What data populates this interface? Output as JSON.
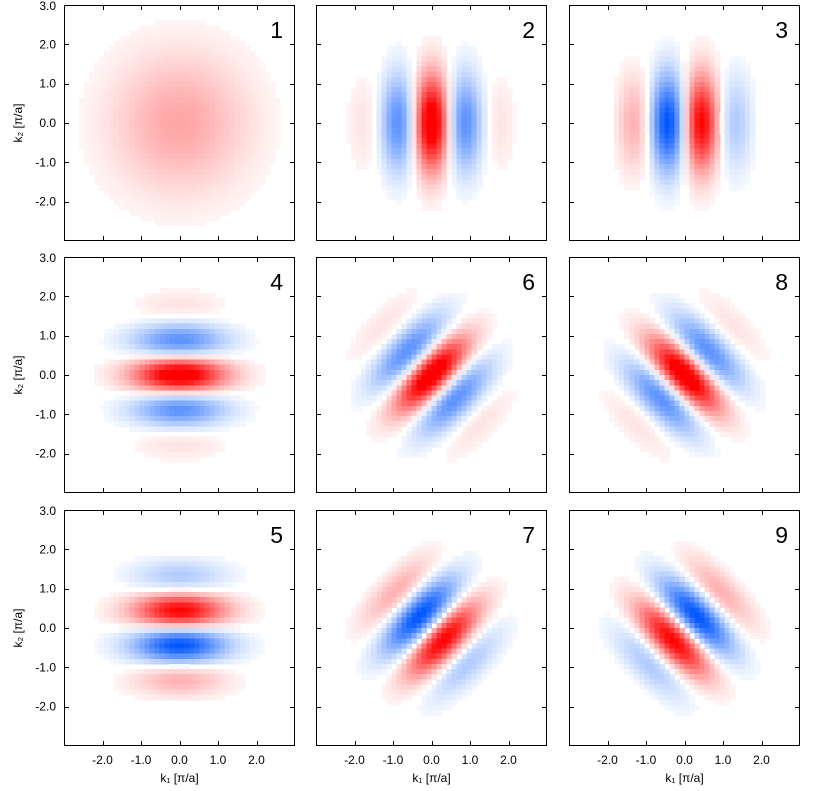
{
  "chart_data": {
    "type": "heatmap",
    "layout": "3x3 grid",
    "x_label": "k₁ [π/a]",
    "y_label": "k₂ [π/a]",
    "x_axis": {
      "range": [
        -3.0,
        3.0
      ],
      "ticks": [
        -2.0,
        -1.0,
        0.0,
        1.0,
        2.0
      ],
      "tick_labels": [
        "-2.0",
        "-1.0",
        "0.0",
        "1.0",
        "2.0"
      ]
    },
    "y_axis": {
      "range": [
        -3.0,
        3.0
      ],
      "ticks": [
        -2.0,
        -1.0,
        0.0,
        1.0,
        2.0,
        3.0
      ],
      "tick_labels": [
        "-2.0",
        "-1.0",
        "0.0",
        "1.0",
        "2.0",
        "3.0"
      ]
    },
    "grid": false,
    "colormap": {
      "positive": "#ff0000",
      "negative": "#0055ff",
      "zero": "#ffffff"
    },
    "panels": [
      {
        "label": "1",
        "row": 0,
        "col": 0,
        "pattern": "radial",
        "stripe_direction": "none",
        "cos_phase": 0
      },
      {
        "label": "2",
        "row": 0,
        "col": 1,
        "pattern": "stripes",
        "stripe_direction": "vertical",
        "cos_phase": 0
      },
      {
        "label": "3",
        "row": 0,
        "col": 2,
        "pattern": "stripes",
        "stripe_direction": "vertical",
        "cos_phase": 90
      },
      {
        "label": "4",
        "row": 1,
        "col": 0,
        "pattern": "stripes",
        "stripe_direction": "horizontal",
        "cos_phase": 0
      },
      {
        "label": "6",
        "row": 1,
        "col": 1,
        "pattern": "stripes",
        "stripe_direction": "diagonal-up",
        "cos_phase": 0
      },
      {
        "label": "8",
        "row": 1,
        "col": 2,
        "pattern": "stripes",
        "stripe_direction": "diagonal-down",
        "cos_phase": 0
      },
      {
        "label": "5",
        "row": 2,
        "col": 0,
        "pattern": "stripes",
        "stripe_direction": "horizontal",
        "cos_phase": 90
      },
      {
        "label": "7",
        "row": 2,
        "col": 1,
        "pattern": "stripes",
        "stripe_direction": "diagonal-up",
        "cos_phase": 90
      },
      {
        "label": "9",
        "row": 2,
        "col": 2,
        "pattern": "stripes",
        "stripe_direction": "diagonal-down",
        "cos_phase": -90
      }
    ]
  }
}
